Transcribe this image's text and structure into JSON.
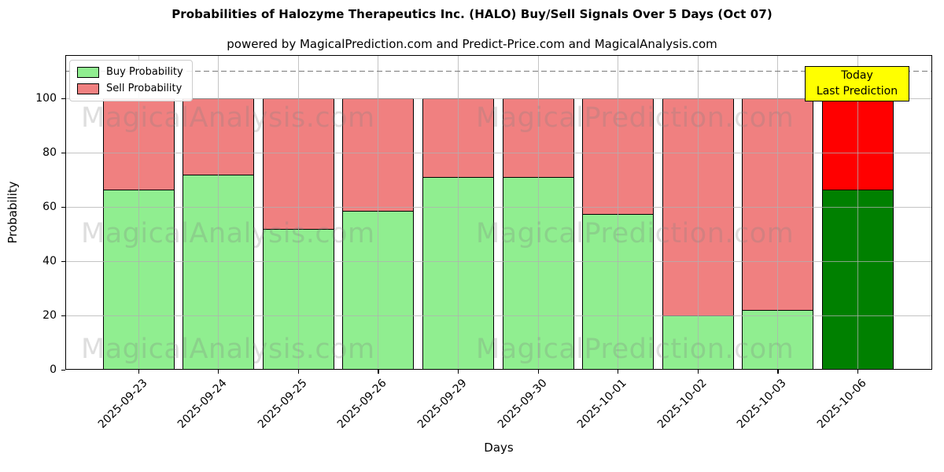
{
  "chart": {
    "title": "Probabilities of Halozyme Therapeutics Inc. (HALO) Buy/Sell Signals Over 5 Days (Oct 07)",
    "subtitle": "powered by MagicalPrediction.com and Predict-Price.com and MagicalAnalysis.com",
    "xlabel": "Days",
    "ylabel": "Probability",
    "legend": [
      {
        "label": "Buy Probability",
        "color": "#90ee90"
      },
      {
        "label": "Sell Probability",
        "color": "#f08080"
      }
    ],
    "annotation": {
      "line1": "Today",
      "line2": "Last Prediction",
      "bg": "#ffff00"
    },
    "watermarks": {
      "left": "MagicalAnalysis.com",
      "right": "MagicalPrediction.com"
    },
    "colors": {
      "buy": "#90ee90",
      "sell": "#f08080",
      "buy_today": "#008000",
      "sell_today": "#ff0000",
      "dashed_line": "#7a7a7a",
      "grid": "#b0b0b0"
    }
  },
  "chart_data": {
    "type": "bar",
    "stacked": true,
    "title": "Probabilities of Halozyme Therapeutics Inc. (HALO) Buy/Sell Signals Over 5 Days (Oct 07)",
    "xlabel": "Days",
    "ylabel": "Probability",
    "categories": [
      "2025-09-23",
      "2025-09-24",
      "2025-09-25",
      "2025-09-26",
      "2025-09-29",
      "2025-09-30",
      "2025-10-01",
      "2025-10-02",
      "2025-10-03",
      "2025-10-06"
    ],
    "series": [
      {
        "name": "Buy Probability",
        "values": [
          66.5,
          72,
          52,
          58.5,
          71,
          71,
          57.5,
          20,
          22,
          66.5
        ]
      },
      {
        "name": "Sell Probability",
        "values": [
          33.5,
          28,
          48,
          41.5,
          29,
          29,
          42.5,
          80,
          78,
          33.5
        ]
      }
    ],
    "today_index": 9,
    "yticks": [
      0,
      20,
      40,
      60,
      80,
      100
    ],
    "ylim": [
      0,
      116
    ],
    "dashed_line_y": 110,
    "grid": true,
    "legend_position": "upper left"
  }
}
